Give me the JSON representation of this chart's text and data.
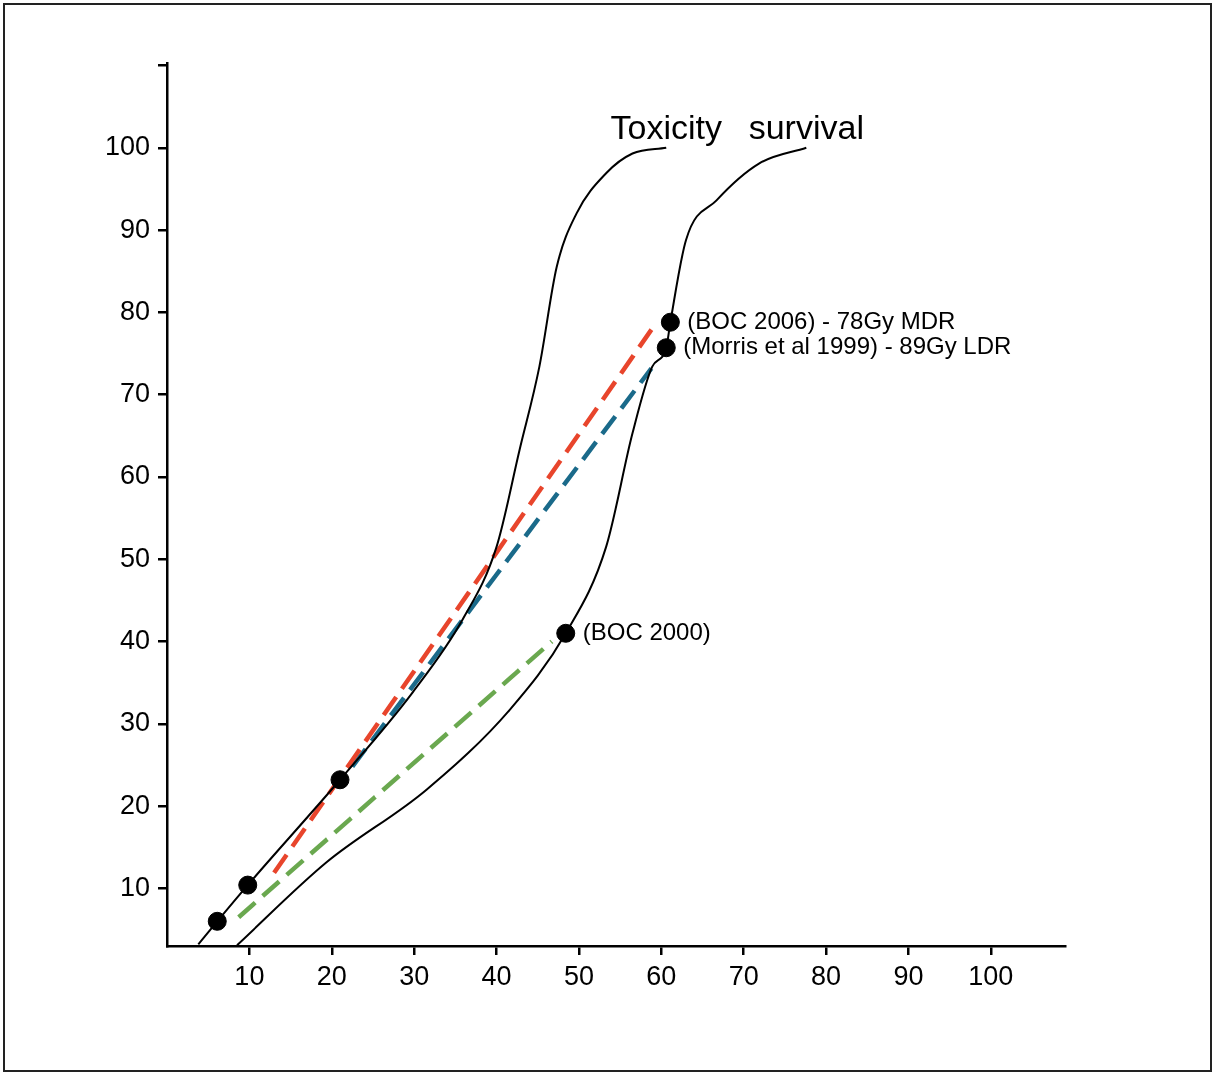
{
  "chart_data": {
    "type": "line",
    "xlim": [
      0,
      109
    ],
    "ylim": [
      3,
      110.3
    ],
    "xticks": [
      10,
      20,
      30,
      40,
      50,
      60,
      70,
      80,
      90,
      100
    ],
    "yticks": [
      10,
      20,
      30,
      40,
      50,
      60,
      70,
      80,
      90,
      100,
      {
        "value": 110,
        "label": null
      }
    ],
    "series": [
      {
        "name": "Toxicity",
        "color": "#000000",
        "marker": "none",
        "line_style": "solid",
        "x": [
          3.8,
          6.1,
          9.8,
          21.0,
          29.8,
          35.9,
          40.0,
          42.8,
          45.2,
          47.3,
          49.7,
          53.3,
          56.5,
          60.6
        ],
        "values": [
          3.2,
          6.0,
          10.4,
          23.2,
          33.8,
          42.7,
          51.5,
          63.3,
          73.4,
          85.5,
          92.0,
          96.9,
          99.3,
          100
        ]
      },
      {
        "name": "survival",
        "color": "#000000",
        "marker": "none",
        "line_style": "solid",
        "x": [
          8.5,
          19.4,
          31.5,
          41.6,
          48.4,
          53.3,
          56.5,
          58.9,
          60.6,
          61.1,
          63.0,
          66.7,
          71.9,
          77.6
        ],
        "values": [
          3.1,
          13.2,
          22.0,
          31.7,
          41.0,
          51.5,
          65.3,
          73.4,
          75.7,
          78.8,
          88.8,
          93.6,
          98.1,
          100
        ]
      },
      {
        "color": "#e8452c",
        "marker": "none",
        "line_style": "dashed",
        "x": [
          13.0,
          58.8
        ],
        "values": [
          11.9,
          77.9
        ]
      },
      {
        "color": "#1a6a8a",
        "marker": "none",
        "line_style": "dashed",
        "x": [
          22.5,
          58.8
        ],
        "values": [
          24.8,
          73.2
        ]
      },
      {
        "color": "#6aa84f",
        "marker": "none",
        "line_style": "dashed",
        "x": [
          8.7,
          46.7
        ],
        "values": [
          6.5,
          40.0
        ]
      },
      {
        "type": "scatter",
        "color": "#000000",
        "marker": "circle",
        "x": [
          6.1,
          9.8,
          21.0,
          48.4,
          60.6,
          61.1
        ],
        "values": [
          6.0,
          10.4,
          23.2,
          41.0,
          75.7,
          78.8
        ]
      }
    ],
    "annotations": [
      {
        "text": "(BOC 2006) - 78Gy MDR",
        "x": 61.1,
        "y": 78.8
      },
      {
        "text": "(Morris et al 1999) - 89Gy LDR",
        "x": 60.6,
        "y": 75.7
      },
      {
        "text": "(BOC 2000)",
        "x": 48.4,
        "y": 41.0
      }
    ]
  }
}
